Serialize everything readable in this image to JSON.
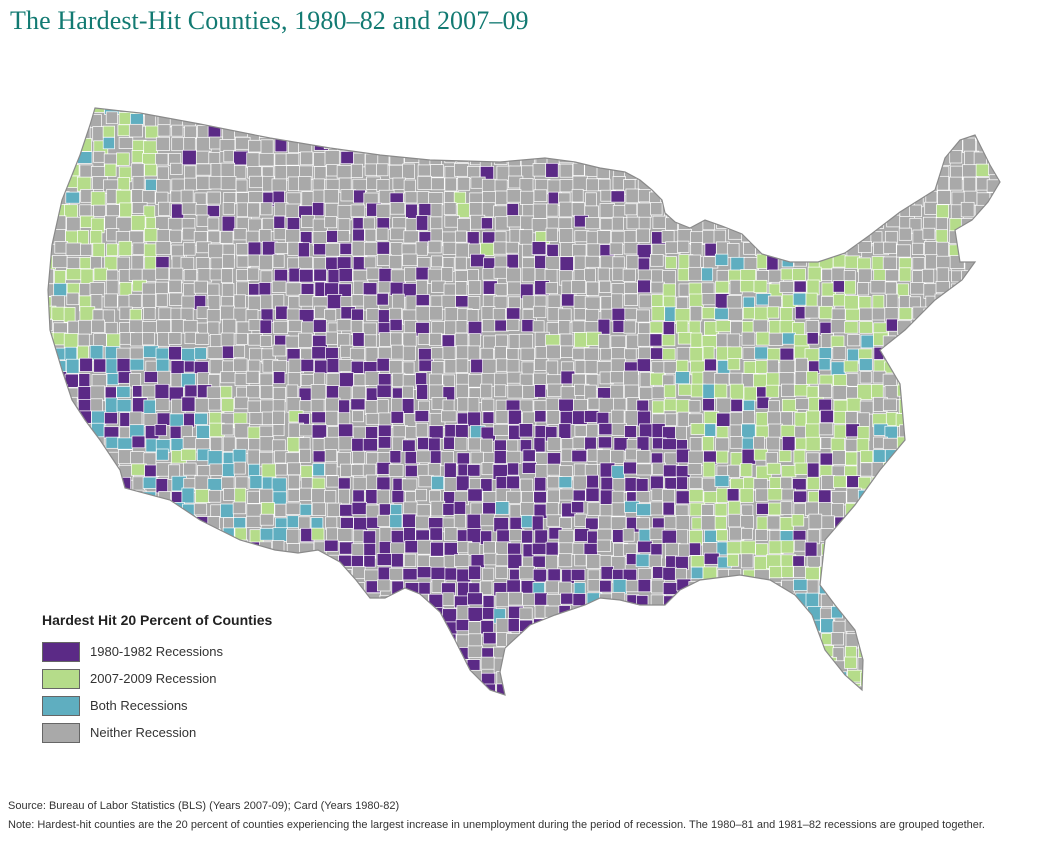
{
  "title": "The Hardest-Hit Counties, 1980–82 and 2007–09",
  "legend": {
    "title": "Hardest Hit 20 Percent of Counties",
    "items": [
      {
        "label": "1980-1982 Recessions",
        "color": "#5b2a86"
      },
      {
        "label": "2007-2009 Recession",
        "color": "#b5dc8a"
      },
      {
        "label": "Both Recessions",
        "color": "#5faec0"
      },
      {
        "label": "Neither Recession",
        "color": "#a9a9a9"
      }
    ]
  },
  "source": "Source: Bureau of Labor Statistics (BLS) (Years 2007-09); Card (Years 1980-82)",
  "note": "Note: Hardest-hit counties are the 20 percent of counties experiencing the largest increase in unemployment during the period of recession. The 1980–81 and 1981–82 recessions are grouped together.",
  "colors": {
    "title": "#127a72",
    "county_border": "#ffffff"
  }
}
